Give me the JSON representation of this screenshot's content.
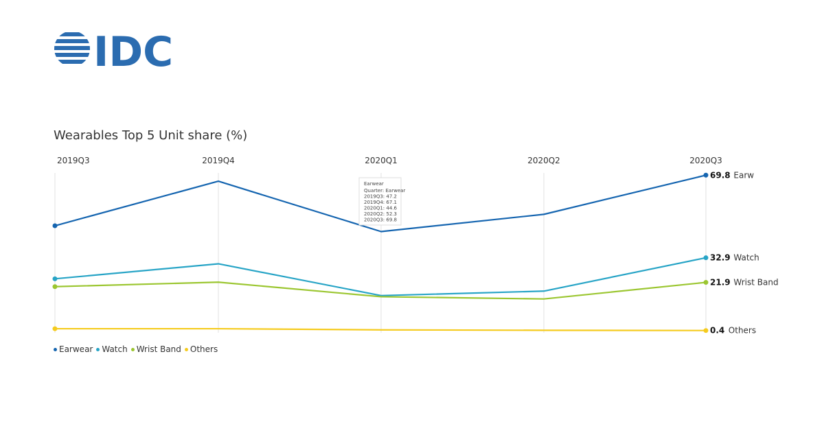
{
  "logo": {
    "text": "IDC",
    "color": "#2B6CB0"
  },
  "chart_data": {
    "type": "line",
    "title": "Wearables Top 5 Unit share (%)",
    "categories": [
      "2019Q3",
      "2019Q4",
      "2020Q1",
      "2020Q2",
      "2020Q3"
    ],
    "series": [
      {
        "name": "Earwear",
        "values": [
          47.2,
          67.1,
          44.6,
          52.3,
          69.8
        ],
        "color": "#1565B0",
        "end_label": "Earw"
      },
      {
        "name": "Watch",
        "values": [
          23.5,
          30.2,
          16.0,
          18.0,
          32.9
        ],
        "color": "#27A4C6",
        "end_label": "Watch"
      },
      {
        "name": "Wrist Band",
        "values": [
          20.0,
          22.0,
          15.5,
          14.5,
          21.9
        ],
        "color": "#9BC630",
        "end_label": "Wrist Band"
      },
      {
        "name": "Others",
        "values": [
          1.2,
          1.2,
          0.7,
          0.5,
          0.4
        ],
        "color": "#F5CB1E",
        "end_label": "Others"
      }
    ],
    "ylim": [
      0,
      80
    ],
    "grid": "vertical",
    "legend": "bottom-left",
    "tooltip": {
      "title": "Earwear",
      "lines": [
        "Quarter: Earwear",
        "2019Q3: 47.2",
        "2019Q4: 67.1",
        "2020Q1: 44.6",
        "2020Q2: 52.3",
        "2020Q3: 69.8"
      ]
    }
  }
}
